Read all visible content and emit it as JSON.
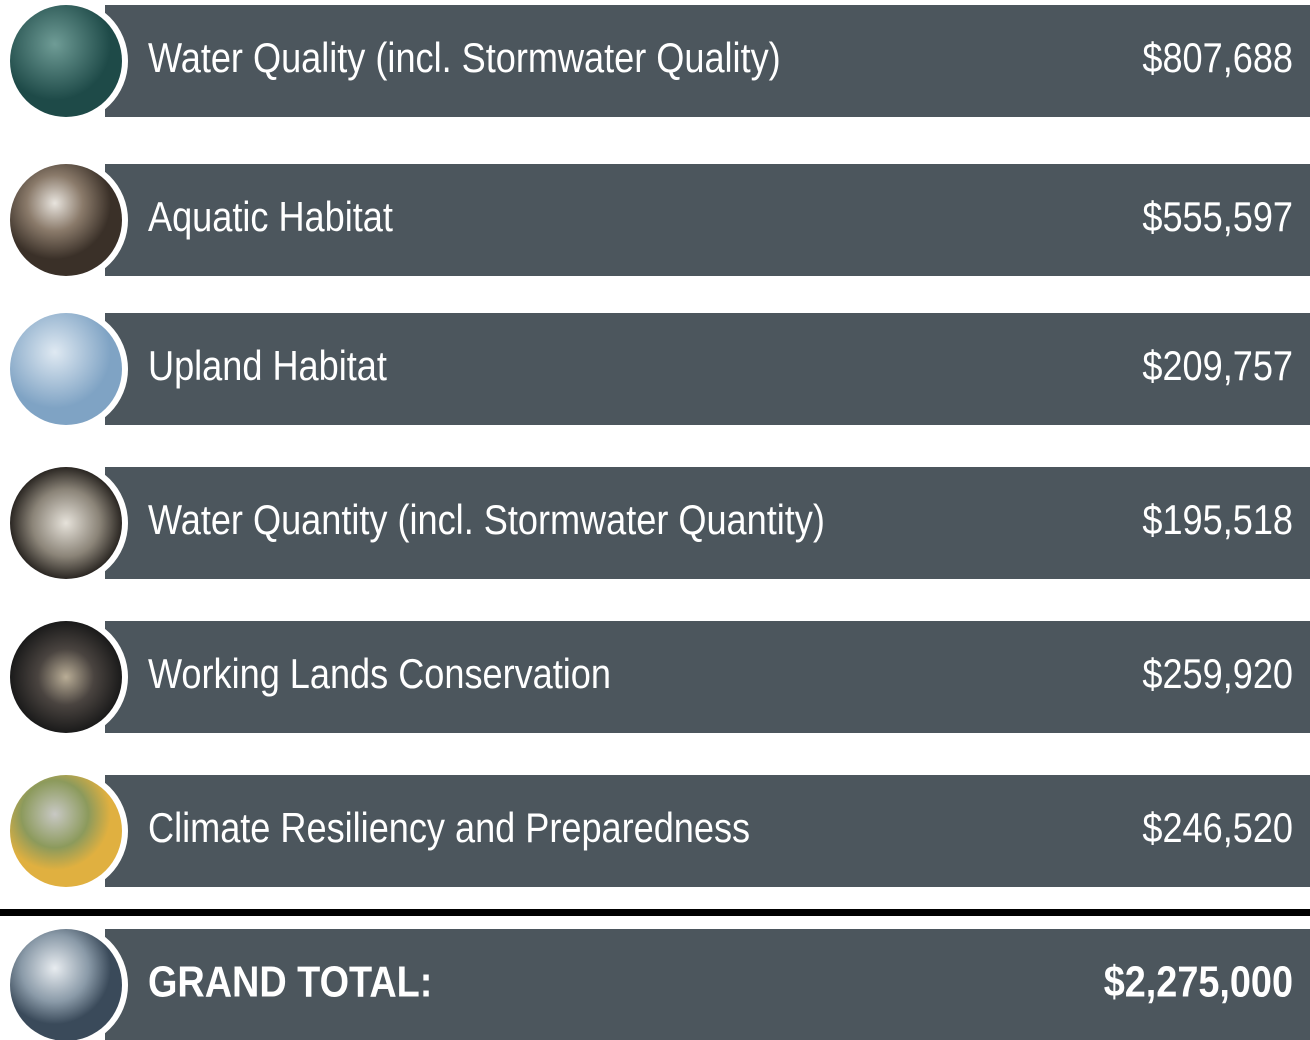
{
  "rows": [
    {
      "label": "Water Quality (incl. Stormwater Quality)",
      "amount": "$807,688"
    },
    {
      "label": "Aquatic Habitat",
      "amount": "$555,597"
    },
    {
      "label": "Upland Habitat",
      "amount": "$209,757"
    },
    {
      "label": "Water Quantity (incl. Stormwater Quantity)",
      "amount": "$195,518"
    },
    {
      "label": "Working Lands Conservation",
      "amount": "$259,920"
    },
    {
      "label": "Climate Resiliency and Preparedness",
      "amount": "$246,520"
    }
  ],
  "total": {
    "label": "GRAND TOTAL:",
    "amount": "$2,275,000"
  }
}
